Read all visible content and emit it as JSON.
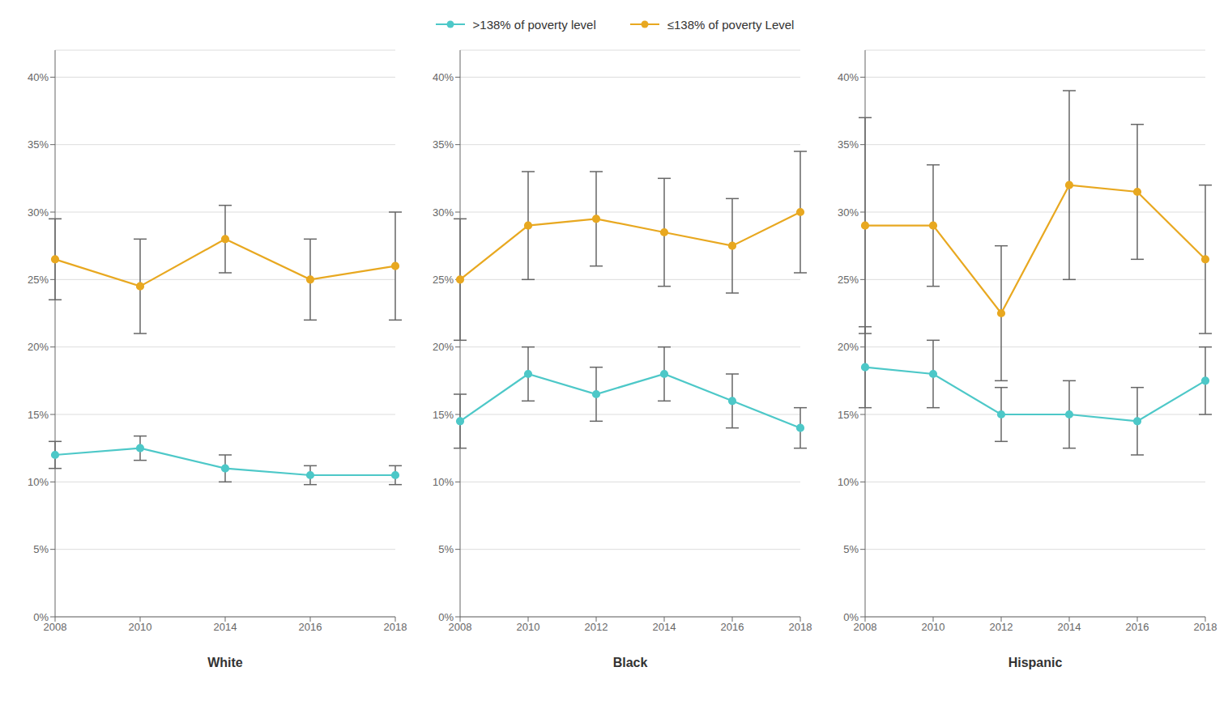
{
  "chart_data": [
    {
      "type": "line",
      "xlabel": "White",
      "categories": [
        "2008",
        "2010",
        "2014",
        "2016",
        "2018"
      ],
      "series": [
        {
          "name": ">138% of poverty level",
          "color": "#4DC8C8",
          "marker": "circle",
          "values": [
            12.0,
            12.5,
            11.0,
            10.5,
            10.5
          ],
          "errors": [
            1.0,
            0.9,
            1.0,
            0.7,
            0.7
          ]
        },
        {
          "name": "≤138% of poverty Level",
          "color": "#E8A820",
          "marker": "circle",
          "values": [
            26.5,
            24.5,
            28.0,
            25.0,
            26.0
          ],
          "errors": [
            3.0,
            3.5,
            2.5,
            3.0,
            4.0
          ]
        }
      ],
      "ylim": [
        0,
        42
      ],
      "yticks": [
        {
          "value": 0,
          "label": "0%"
        },
        {
          "value": 5,
          "label": "5%"
        },
        {
          "value": 10,
          "label": "10%"
        },
        {
          "value": 15,
          "label": "15%"
        },
        {
          "value": 20,
          "label": "20%"
        },
        {
          "value": 25,
          "label": "25%"
        },
        {
          "value": 30,
          "label": "30%"
        },
        {
          "value": 35,
          "label": "35%"
        },
        {
          "value": 40,
          "label": "40%"
        }
      ],
      "grid": true,
      "legend": "top"
    },
    {
      "type": "line",
      "xlabel": "Black",
      "categories": [
        "2008",
        "2010",
        "2012",
        "2014",
        "2016",
        "2018"
      ],
      "series": [
        {
          "name": ">138% of poverty level",
          "color": "#4DC8C8",
          "marker": "circle",
          "values": [
            14.5,
            18.0,
            16.5,
            18.0,
            16.0,
            14.0
          ],
          "errors": [
            2.0,
            2.0,
            2.0,
            2.0,
            2.0,
            1.5
          ]
        },
        {
          "name": "≤138% of poverty Level",
          "color": "#E8A820",
          "marker": "circle",
          "values": [
            25.0,
            29.0,
            29.5,
            28.5,
            27.5,
            30.0
          ],
          "errors": [
            4.5,
            4.0,
            3.5,
            4.0,
            3.5,
            4.5
          ]
        }
      ],
      "ylim": [
        0,
        42
      ],
      "yticks": [
        {
          "value": 0,
          "label": "0%"
        },
        {
          "value": 5,
          "label": "5%"
        },
        {
          "value": 10,
          "label": "10%"
        },
        {
          "value": 15,
          "label": "15%"
        },
        {
          "value": 20,
          "label": "20%"
        },
        {
          "value": 25,
          "label": "25%"
        },
        {
          "value": 30,
          "label": "30%"
        },
        {
          "value": 35,
          "label": "35%"
        },
        {
          "value": 40,
          "label": "40%"
        }
      ],
      "grid": true
    },
    {
      "type": "line",
      "xlabel": "Hispanic",
      "categories": [
        "2008",
        "2010",
        "2012",
        "2014",
        "2016",
        "2018"
      ],
      "series": [
        {
          "name": ">138% of poverty level",
          "color": "#4DC8C8",
          "marker": "circle",
          "values": [
            18.5,
            18.0,
            15.0,
            15.0,
            14.5,
            17.5
          ],
          "errors": [
            3.0,
            2.5,
            2.0,
            2.5,
            2.5,
            2.5
          ]
        },
        {
          "name": "≤138% of poverty Level",
          "color": "#E8A820",
          "marker": "circle",
          "values": [
            29.0,
            29.0,
            22.5,
            32.0,
            31.5,
            26.5
          ],
          "errors": [
            8.0,
            4.5,
            5.0,
            7.0,
            5.0,
            5.5
          ]
        }
      ],
      "ylim": [
        0,
        42
      ],
      "yticks": [
        {
          "value": 0,
          "label": "0%"
        },
        {
          "value": 5,
          "label": "5%"
        },
        {
          "value": 10,
          "label": "10%"
        },
        {
          "value": 15,
          "label": "15%"
        },
        {
          "value": 20,
          "label": "20%"
        },
        {
          "value": 25,
          "label": "25%"
        },
        {
          "value": 30,
          "label": "30%"
        },
        {
          "value": 35,
          "label": "35%"
        },
        {
          "value": 40,
          "label": "40%"
        }
      ],
      "grid": true
    }
  ]
}
